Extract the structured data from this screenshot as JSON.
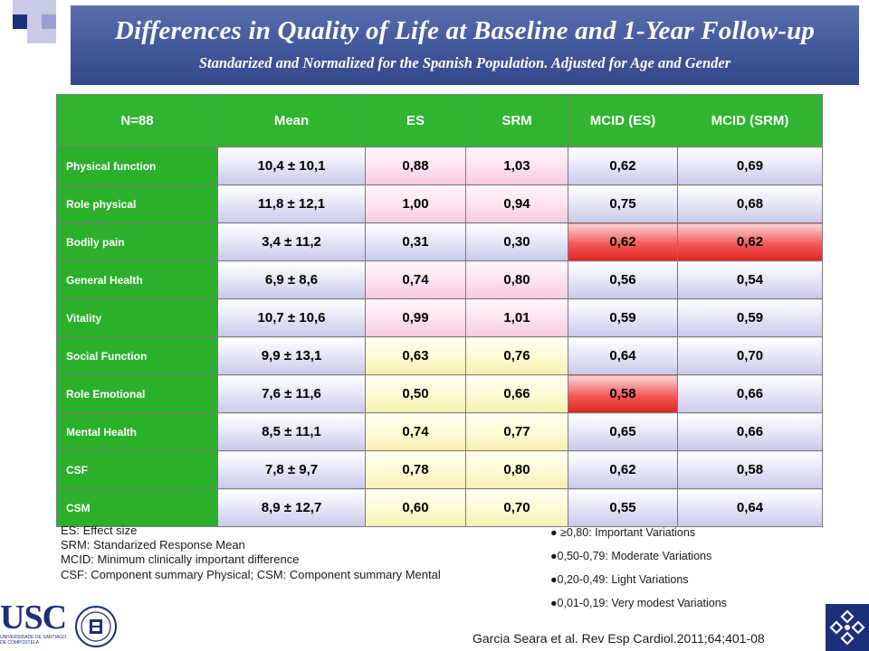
{
  "header": {
    "title": "Differences in Quality of Life at Baseline and 1-Year Follow-up",
    "subtitle": "Standarized and Normalized for the Spanish Population. Adjusted for Age and Gender"
  },
  "table": {
    "columns": [
      "N=88",
      "Mean",
      "ES",
      "SRM",
      "MCID (ES)",
      "MCID (SRM)"
    ],
    "rows": [
      {
        "label": "Physical function",
        "values": [
          "10,4 ± 10,1",
          "0,88",
          "1,03",
          "0,62",
          "0,69"
        ]
      },
      {
        "label": "Role physical",
        "values": [
          "11,8 ± 12,1",
          "1,00",
          "0,94",
          "0,75",
          "0,68"
        ]
      },
      {
        "label": "Bodily pain",
        "values": [
          "3,4 ± 11,2",
          "0,31",
          "0,30",
          "0,62",
          "0,62"
        ]
      },
      {
        "label": "General Health",
        "values": [
          "6,9 ± 8,6",
          "0,74",
          "0,80",
          "0,56",
          "0,54"
        ]
      },
      {
        "label": "Vitality",
        "values": [
          "10,7 ± 10,6",
          "0,99",
          "1,01",
          "0,59",
          "0,59"
        ]
      },
      {
        "label": "Social Function",
        "values": [
          "9,9 ± 13,1",
          "0,63",
          "0,76",
          "0,64",
          "0,70"
        ]
      },
      {
        "label": "Role Emotional",
        "values": [
          "7,6 ± 11,6",
          "0,50",
          "0,66",
          "0,58",
          "0,66"
        ]
      },
      {
        "label": "Mental Health",
        "values": [
          "8,5 ± 11,1",
          "0,74",
          "0,77",
          "0,65",
          "0,66"
        ]
      },
      {
        "label": "CSF",
        "values": [
          "7,8 ± 9,7",
          "0,78",
          "0,80",
          "0,62",
          "0,58"
        ]
      },
      {
        "label": "CSM",
        "values": [
          "8,9 ± 12,7",
          "0,60",
          "0,70",
          "0,55",
          "0,64"
        ]
      }
    ],
    "cell_colors": {
      "blue": "#c9c9ea",
      "pink": "#f7cadf",
      "yellow": "#f7efb0",
      "red": "#e22222",
      "header_green": "#2fb52f"
    }
  },
  "abbreviations": [
    "ES: Effect size",
    "SRM: Standarized Response Mean",
    "MCID: Minimum clinically important difference",
    "CSF: Component summary Physical; CSM: Component summary Mental"
  ],
  "legend": [
    "● ≥0,80: Important Variations",
    "●0,50-0,79: Moderate Variations",
    "●0,20-0,49: Light Variations",
    "●0,01-0,19: Very modest Variations"
  ],
  "citation": "Garcia Seara et al. Rev Esp Cardiol.2011;64;401-08",
  "logos": {
    "usc": "USC",
    "usc_sub": "UNIVERSIDADE DE SANTIAGO DE COMPOSTELA"
  }
}
